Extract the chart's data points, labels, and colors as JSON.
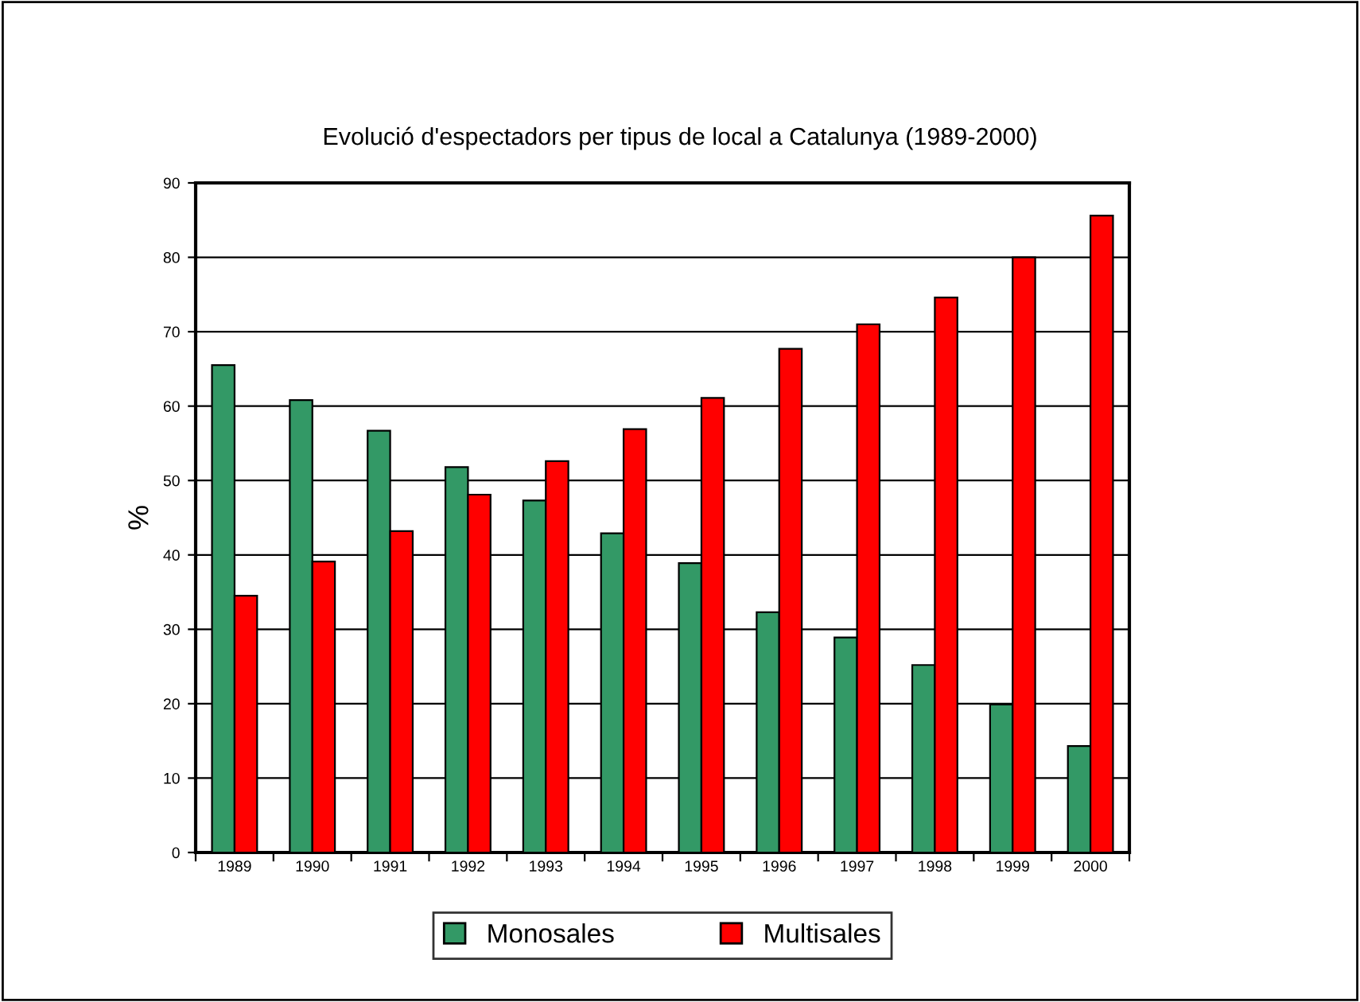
{
  "chart_data": {
    "type": "bar",
    "title": "Evolució d'espectadors per tipus de local a Catalunya (1989-2000)",
    "ylabel": "%",
    "categories": [
      "1989",
      "1990",
      "1991",
      "1992",
      "1993",
      "1994",
      "1995",
      "1996",
      "1997",
      "1998",
      "1999",
      "2000"
    ],
    "series": [
      {
        "name": "Monosales",
        "color": "#339966",
        "values": [
          65.5,
          60.8,
          56.7,
          51.8,
          47.3,
          42.9,
          38.9,
          32.3,
          28.9,
          25.2,
          19.9,
          14.3
        ]
      },
      {
        "name": "Multisales",
        "color": "#ff0000",
        "values": [
          34.5,
          39.1,
          43.2,
          48.1,
          52.6,
          56.9,
          61.1,
          67.7,
          71.0,
          74.6,
          80.0,
          85.6
        ]
      }
    ],
    "ylim": [
      0,
      90
    ],
    "yticks": [
      0,
      10,
      20,
      30,
      40,
      50,
      60,
      70,
      80,
      90
    ],
    "grid": "y",
    "legend": "bottom"
  }
}
